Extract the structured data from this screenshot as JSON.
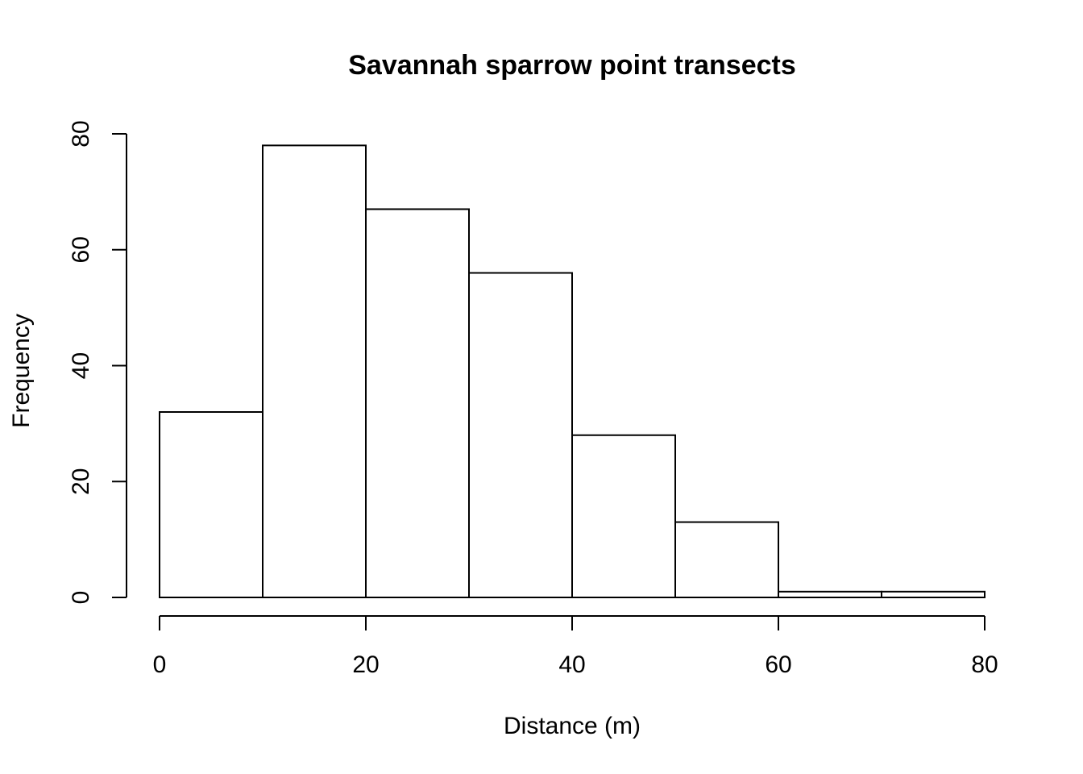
{
  "chart_data": {
    "type": "bar",
    "subtype": "histogram",
    "title": "Savannah sparrow point transects",
    "xlabel": "Distance (m)",
    "ylabel": "Frequency",
    "bins": [
      {
        "from": 0,
        "to": 10,
        "count": 32
      },
      {
        "from": 10,
        "to": 20,
        "count": 78
      },
      {
        "from": 20,
        "to": 30,
        "count": 67
      },
      {
        "from": 30,
        "to": 40,
        "count": 56
      },
      {
        "from": 40,
        "to": 50,
        "count": 28
      },
      {
        "from": 50,
        "to": 60,
        "count": 13
      },
      {
        "from": 60,
        "to": 70,
        "count": 1
      },
      {
        "from": 70,
        "to": 80,
        "count": 1
      }
    ],
    "xlim": [
      0,
      80
    ],
    "ylim": [
      0,
      80
    ],
    "xticks": [
      0,
      20,
      40,
      60,
      80
    ],
    "yticks": [
      0,
      20,
      40,
      60,
      80
    ],
    "grid": false,
    "bar_fill": "#ffffff",
    "bar_stroke": "#000000"
  }
}
